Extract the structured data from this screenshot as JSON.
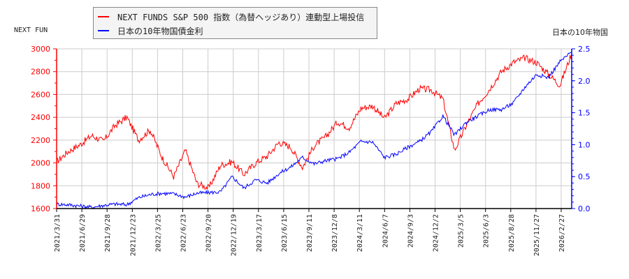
{
  "legend": {
    "series1_label": "NEXT FUNDS S&P 500 指数（為替ヘッジあり）連動型上場投信",
    "series2_label": "日本の10年物国債金利"
  },
  "axes": {
    "left_title": "NEXT FUN",
    "right_title": "日本の10年物国"
  },
  "colors": {
    "series1": "#ff0000",
    "series2": "#0000ff",
    "grid": "#cccccc"
  },
  "chart_data": {
    "type": "line",
    "title": "",
    "xlabel": "",
    "ylabel_left": "NEXT FUNDS S&P 500 指数（為替ヘッジあり）連動型上場投信",
    "ylabel_right": "日本の10年物国債金利",
    "ylim_left": [
      1600,
      3000
    ],
    "ylim_right": [
      0.0,
      2.5
    ],
    "yticks_left": [
      1600,
      1800,
      2000,
      2200,
      2400,
      2600,
      2800,
      3000
    ],
    "yticks_right": [
      "0.0",
      "0.5",
      "1.0",
      "1.5",
      "2.0",
      "2.5"
    ],
    "x_tick_labels": [
      "2021/3/31",
      "2021/6/29",
      "2021/9/28",
      "2021/12/23",
      "2022/3/25",
      "2022/6/23",
      "2022/9/20",
      "2022/12/19",
      "2023/3/17",
      "2023/6/15",
      "2023/9/11",
      "2023/12/8",
      "2024/3/11",
      "2024/6/7",
      "2024/9/3",
      "2024/12/2",
      "2025/3/5",
      "2025/6/3",
      "2025/8/28",
      "2025/11/27",
      "2026/2/27"
    ],
    "grid": true,
    "legend_position": "top-left",
    "x": [
      "2021/3/31",
      "2021/5/15",
      "2021/6/29",
      "2021/8/15",
      "2021/9/28",
      "2021/11/10",
      "2021/12/23",
      "2022/2/10",
      "2022/3/25",
      "2022/5/10",
      "2022/6/23",
      "2022/8/5",
      "2022/9/20",
      "2022/10/15",
      "2022/12/19",
      "2023/2/1",
      "2023/3/17",
      "2023/5/1",
      "2023/6/15",
      "2023/7/31",
      "2023/9/11",
      "2023/10/25",
      "2023/12/8",
      "2024/1/25",
      "2024/3/11",
      "2024/4/25",
      "2024/6/7",
      "2024/7/20",
      "2024/8/5",
      "2024/9/3",
      "2024/10/20",
      "2024/12/2",
      "2025/1/20",
      "2025/3/5",
      "2025/4/8",
      "2025/5/1",
      "2025/6/3",
      "2025/7/15",
      "2025/8/28",
      "2025/10/10",
      "2025/11/27",
      "2026/1/10",
      "2026/2/27",
      "2026/3/20",
      "2026/4/10"
    ],
    "series": [
      {
        "name": "NEXT FUNDS S&P 500 指数（為替ヘッジあり）連動型上場投信",
        "color": "#ff0000",
        "axis": "left",
        "values": [
          2010,
          2100,
          2160,
          2240,
          2190,
          2330,
          2400,
          2200,
          2290,
          2050,
          1880,
          2110,
          1820,
          1780,
          1980,
          2010,
          1900,
          2000,
          2060,
          2180,
          2140,
          1960,
          2150,
          2230,
          2360,
          2310,
          2480,
          2500,
          2390,
          2520,
          2560,
          2650,
          2640,
          2560,
          2110,
          2330,
          2520,
          2650,
          2800,
          2880,
          2920,
          2880,
          2780,
          2680,
          2960
        ]
      },
      {
        "name": "日本の10年物国債金利",
        "color": "#0000ff",
        "axis": "right",
        "values": [
          0.07,
          0.06,
          0.04,
          0.02,
          0.05,
          0.07,
          0.06,
          0.17,
          0.22,
          0.24,
          0.23,
          0.18,
          0.24,
          0.25,
          0.26,
          0.5,
          0.32,
          0.45,
          0.4,
          0.55,
          0.65,
          0.8,
          0.7,
          0.75,
          0.78,
          0.88,
          1.05,
          1.04,
          0.8,
          0.85,
          0.96,
          1.05,
          1.2,
          1.45,
          1.15,
          1.35,
          1.45,
          1.55,
          1.55,
          1.65,
          1.9,
          2.1,
          2.05,
          2.3,
          2.45
        ]
      }
    ]
  }
}
